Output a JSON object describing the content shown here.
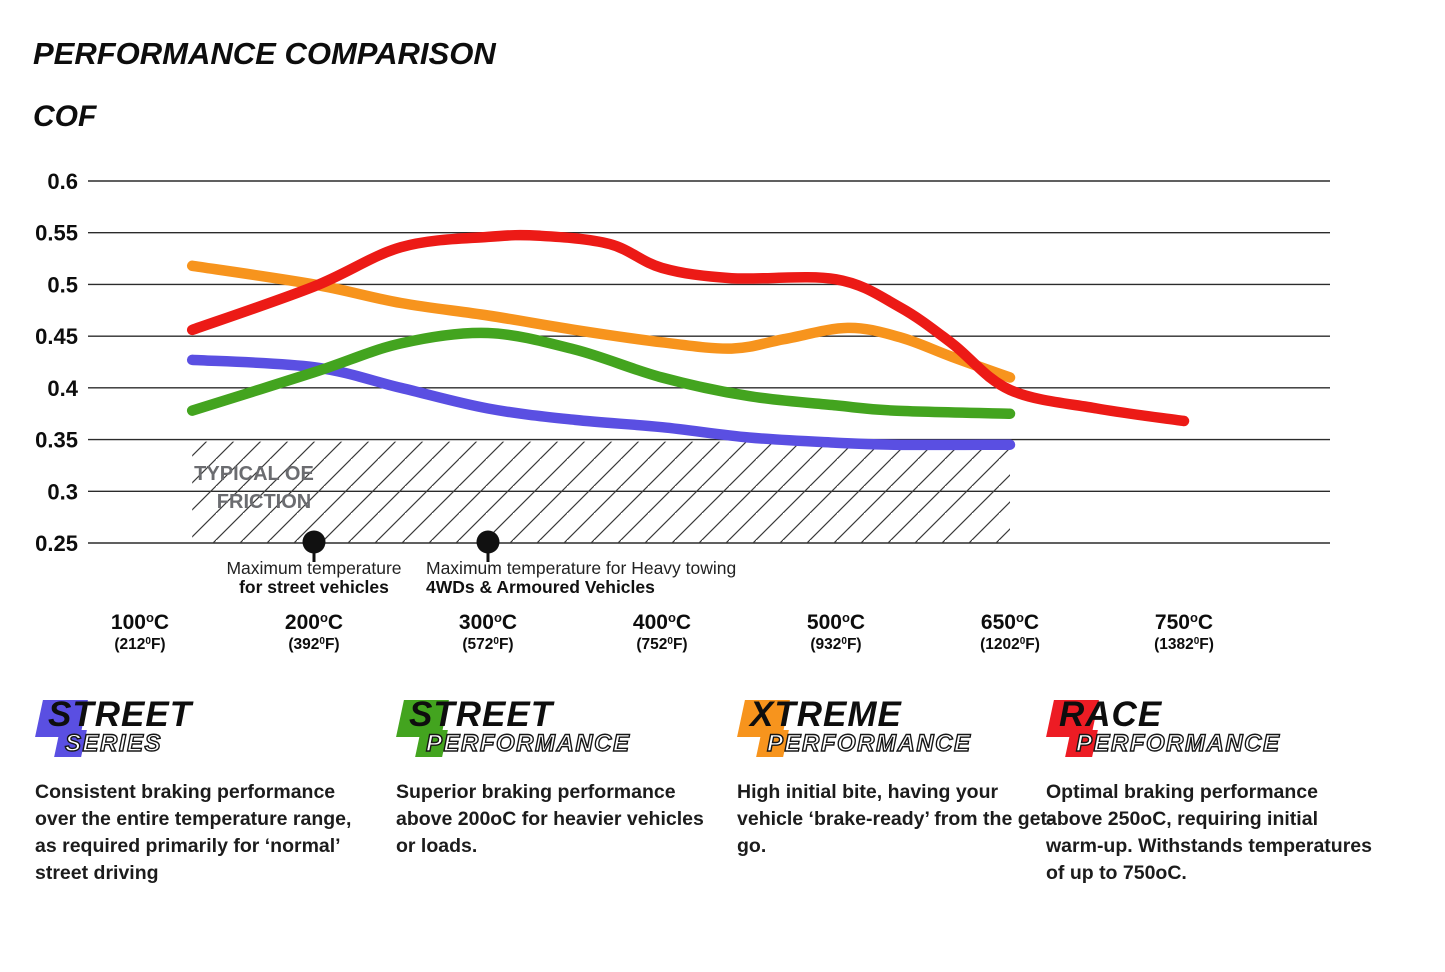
{
  "title": "PERFORMANCE COMPARISON",
  "y_axis_label": "COF",
  "chart_data": {
    "type": "line",
    "title": "PERFORMANCE COMPARISON",
    "ylabel": "COF",
    "ylim": [
      0.25,
      0.6
    ],
    "grid": true,
    "y_ticks": [
      "0.6",
      "0.55",
      "0.5",
      "0.45",
      "0.4",
      "0.35",
      "0.3",
      "0.25"
    ],
    "x_tick_temps": [
      100,
      200,
      300,
      400,
      500,
      650,
      750
    ],
    "x_ticks": [
      {
        "c_base": "100",
        "c_sup": "o",
        "c_unit": "C",
        "f_base": "(212",
        "f_sup": "0",
        "f_unit": "F)"
      },
      {
        "c_base": "200",
        "c_sup": "o",
        "c_unit": "C",
        "f_base": "(392",
        "f_sup": "0",
        "f_unit": "F)"
      },
      {
        "c_base": "300",
        "c_sup": "o",
        "c_unit": "C",
        "f_base": "(572",
        "f_sup": "0",
        "f_unit": "F)"
      },
      {
        "c_base": "400",
        "c_sup": "o",
        "c_unit": "C",
        "f_base": "(752",
        "f_sup": "0",
        "f_unit": "F)"
      },
      {
        "c_base": "500",
        "c_sup": "o",
        "c_unit": "C",
        "f_base": "(932",
        "f_sup": "0",
        "f_unit": "F)"
      },
      {
        "c_base": "650",
        "c_sup": "o",
        "c_unit": "C",
        "f_base": "(1202",
        "f_sup": "0",
        "f_unit": "F)"
      },
      {
        "c_base": "750",
        "c_sup": "o",
        "c_unit": "C",
        "f_base": "(1382",
        "f_sup": "0",
        "f_unit": "F)"
      }
    ],
    "series": [
      {
        "name": "Street Series",
        "color": "#5a4fe2",
        "points": [
          [
            130,
            0.427
          ],
          [
            200,
            0.42
          ],
          [
            250,
            0.4
          ],
          [
            300,
            0.38
          ],
          [
            350,
            0.369
          ],
          [
            400,
            0.362
          ],
          [
            450,
            0.352
          ],
          [
            500,
            0.347
          ],
          [
            550,
            0.345
          ],
          [
            650,
            0.345
          ]
        ]
      },
      {
        "name": "Street Performance",
        "color": "#43a41f",
        "points": [
          [
            130,
            0.378
          ],
          [
            200,
            0.415
          ],
          [
            250,
            0.443
          ],
          [
            300,
            0.453
          ],
          [
            350,
            0.437
          ],
          [
            400,
            0.41
          ],
          [
            450,
            0.392
          ],
          [
            500,
            0.383
          ],
          [
            550,
            0.378
          ],
          [
            650,
            0.375
          ]
        ]
      },
      {
        "name": "Xtreme Performance",
        "color": "#f7941d",
        "points": [
          [
            130,
            0.518
          ],
          [
            200,
            0.5
          ],
          [
            250,
            0.482
          ],
          [
            300,
            0.47
          ],
          [
            350,
            0.456
          ],
          [
            400,
            0.444
          ],
          [
            440,
            0.438
          ],
          [
            470,
            0.447
          ],
          [
            510,
            0.458
          ],
          [
            555,
            0.449
          ],
          [
            600,
            0.43
          ],
          [
            650,
            0.41
          ]
        ]
      },
      {
        "name": "Race Performance",
        "color": "#ec1a16",
        "points": [
          [
            130,
            0.456
          ],
          [
            200,
            0.498
          ],
          [
            250,
            0.536
          ],
          [
            300,
            0.546
          ],
          [
            330,
            0.547
          ],
          [
            370,
            0.539
          ],
          [
            400,
            0.516
          ],
          [
            440,
            0.506
          ],
          [
            500,
            0.505
          ],
          [
            555,
            0.478
          ],
          [
            600,
            0.443
          ],
          [
            650,
            0.398
          ],
          [
            700,
            0.38
          ],
          [
            750,
            0.368
          ]
        ]
      }
    ],
    "oe_zone": {
      "label_line1": "TYPICAL OE",
      "label_line2": "FRICTION",
      "label_color": "#6b6c70",
      "t_from": 130,
      "t_to": 650,
      "cof_top": 0.348,
      "cof_bottom": 0.25
    },
    "markers": [
      {
        "temp": 200,
        "cof": 0.25,
        "line1": "Maximum temperature",
        "line2": "for street vehicles",
        "align": "center"
      },
      {
        "temp": 300,
        "cof": 0.25,
        "line1": "Maximum temperature for Heavy towing",
        "line2": "4WDs & Armoured Vehicles",
        "align": "left"
      }
    ]
  },
  "legend": [
    {
      "word1": "STREET",
      "word2": "SERIES",
      "color": "#5a4fe2",
      "description": "Consistent braking performance over the entire temperature range, as required primarily for ‘normal’ street driving"
    },
    {
      "word1": "STREET",
      "word2": "PERFORMANCE",
      "color": "#43a41f",
      "description": "Superior braking performance above 200oC for heavier vehicles or loads."
    },
    {
      "word1": "XTREME",
      "word2": "PERFORMANCE",
      "color": "#f7941d",
      "description": "High initial bite, having your vehicle ‘brake-ready’ from the get-go."
    },
    {
      "word1": "RACE",
      "word2": "PERFORMANCE",
      "color": "#ed1c24",
      "description": "Optimal braking performance above 250oC, requiring initial warm-up. Withstands temperatures of up to 750oC."
    }
  ]
}
